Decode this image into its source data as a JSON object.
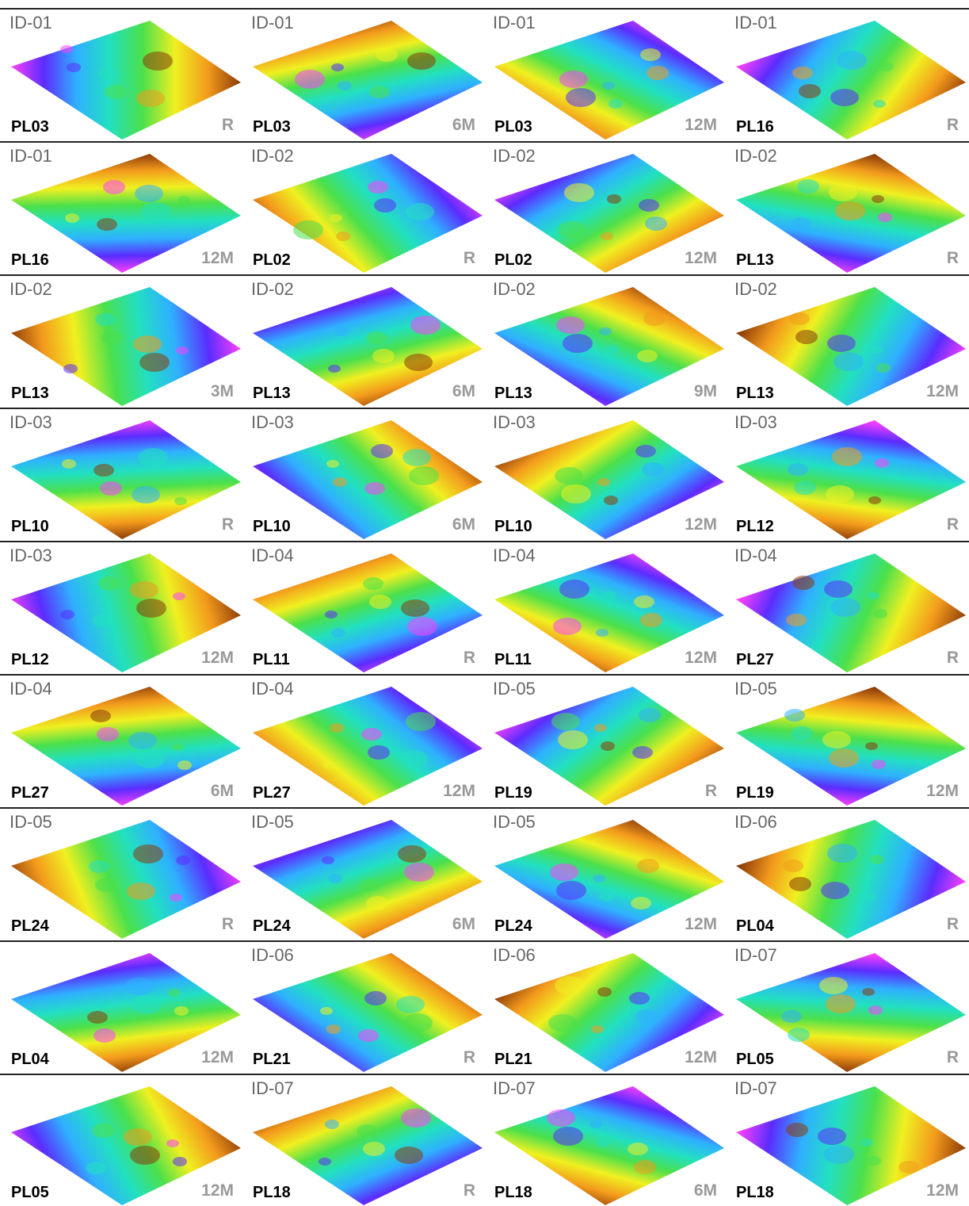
{
  "panels": [
    {
      "id": "ID-01",
      "plate": "PL03",
      "time": "R"
    },
    {
      "id": "ID-01",
      "plate": "PL03",
      "time": "6M"
    },
    {
      "id": "ID-01",
      "plate": "PL03",
      "time": "12M"
    },
    {
      "id": "ID-01",
      "plate": "PL16",
      "time": "R"
    },
    {
      "id": "ID-01",
      "plate": "PL16",
      "time": "12M"
    },
    {
      "id": "ID-02",
      "plate": "PL02",
      "time": "R"
    },
    {
      "id": "ID-02",
      "plate": "PL02",
      "time": "12M"
    },
    {
      "id": "ID-02",
      "plate": "PL13",
      "time": "R"
    },
    {
      "id": "ID-02",
      "plate": "PL13",
      "time": "3M"
    },
    {
      "id": "ID-02",
      "plate": "PL13",
      "time": "6M"
    },
    {
      "id": "ID-02",
      "plate": "PL13",
      "time": "9M"
    },
    {
      "id": "ID-02",
      "plate": "PL13",
      "time": "12M"
    },
    {
      "id": "ID-03",
      "plate": "PL10",
      "time": "R"
    },
    {
      "id": "ID-03",
      "plate": "PL10",
      "time": "6M"
    },
    {
      "id": "ID-03",
      "plate": "PL10",
      "time": "12M"
    },
    {
      "id": "ID-03",
      "plate": "PL12",
      "time": "R"
    },
    {
      "id": "ID-03",
      "plate": "PL12",
      "time": "12M"
    },
    {
      "id": "ID-04",
      "plate": "PL11",
      "time": "R"
    },
    {
      "id": "ID-04",
      "plate": "PL11",
      "time": "12M"
    },
    {
      "id": "ID-04",
      "plate": "PL27",
      "time": "R"
    },
    {
      "id": "ID-04",
      "plate": "PL27",
      "time": "6M"
    },
    {
      "id": "ID-04",
      "plate": "PL27",
      "time": "12M"
    },
    {
      "id": "ID-05",
      "plate": "PL19",
      "time": "R"
    },
    {
      "id": "ID-05",
      "plate": "PL19",
      "time": "12M"
    },
    {
      "id": "ID-05",
      "plate": "PL24",
      "time": "R"
    },
    {
      "id": "ID-05",
      "plate": "PL24",
      "time": "6M"
    },
    {
      "id": "ID-05",
      "plate": "PL24",
      "time": "12M"
    },
    {
      "id": "ID-06",
      "plate": "PL04",
      "time": "R"
    },
    {
      "plate": "PL04",
      "time": "12M"
    },
    {
      "id": "ID-06",
      "plate": "PL21",
      "time": "R"
    },
    {
      "id": "ID-06",
      "plate": "PL21",
      "time": "12M"
    },
    {
      "id": "ID-07",
      "plate": "PL05",
      "time": "R"
    },
    {
      "plate": "PL05",
      "time": "12M"
    },
    {
      "id": "ID-07",
      "plate": "PL18",
      "time": "R"
    },
    {
      "id": "ID-07",
      "plate": "PL18",
      "time": "6M"
    },
    {
      "id": "ID-07",
      "plate": "PL18",
      "time": "12M"
    }
  ]
}
